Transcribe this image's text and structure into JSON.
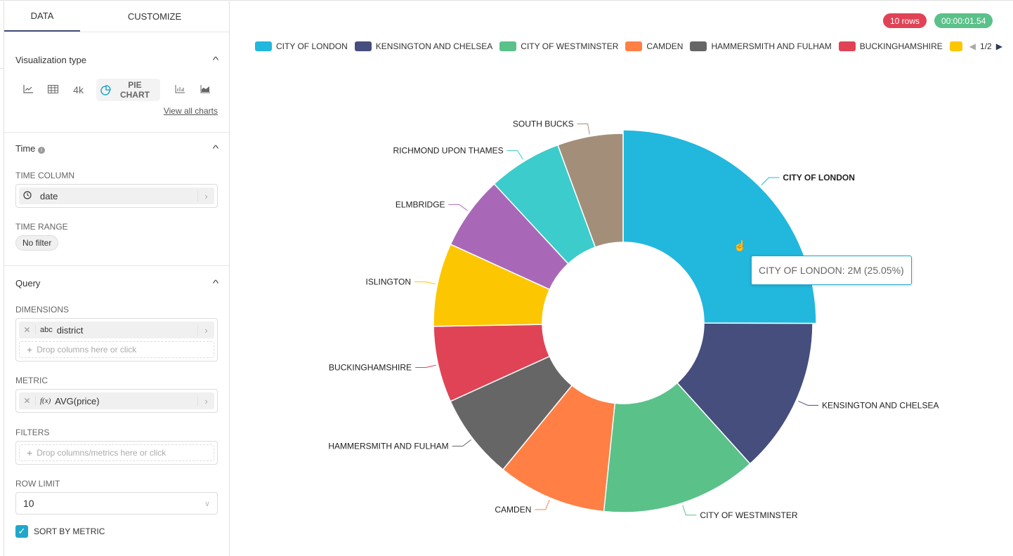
{
  "tabs": [
    {
      "label": "DATA",
      "active": true
    },
    {
      "label": "CUSTOMIZE",
      "active": false
    }
  ],
  "viz": {
    "title": "Visualization type",
    "big_number_label": "4k",
    "selected": "PIE CHART",
    "view_all": "View all charts"
  },
  "time": {
    "title": "Time",
    "time_column_label": "TIME COLUMN",
    "time_column": "date",
    "time_range_label": "TIME RANGE",
    "time_range": "No filter"
  },
  "query": {
    "title": "Query",
    "dimensions_label": "DIMENSIONS",
    "dimension_type": "abc",
    "dimension": "district",
    "dimensions_placeholder": "Drop columns here or click",
    "metric_label": "METRIC",
    "metric_type": "f(x)",
    "metric": "AVG(price)",
    "filters_label": "FILTERS",
    "filters_placeholder": "Drop columns/metrics here or click",
    "row_limit_label": "ROW LIMIT",
    "row_limit": "10",
    "sort_by_metric_label": "SORT BY METRIC",
    "sort_by_metric": true
  },
  "status": {
    "rows": "10 rows",
    "rows_color": "#e04355",
    "time": "00:00:01.54",
    "time_color": "#5ac189"
  },
  "legend_page": "1/2",
  "tooltip": "CITY OF LONDON: 2M (25.05%)",
  "chart_data": {
    "type": "pie",
    "donut": true,
    "legend_placement": "top",
    "unit": "percent",
    "categories": [
      "CITY OF LONDON",
      "KENSINGTON AND CHELSEA",
      "CITY OF WESTMINSTER",
      "CAMDEN",
      "HAMMERSMITH AND FULHAM",
      "BUCKINGHAMSHIRE",
      "ISLINGTON",
      "ELMBRIDGE",
      "RICHMOND UPON THAMES",
      "SOUTH BUCKS"
    ],
    "values": [
      25.05,
      13.3,
      13.3,
      9.3,
      7.3,
      6.5,
      7.1,
      6.3,
      6.3,
      5.6
    ],
    "colors": [
      "#22b7dd",
      "#454e7c",
      "#5ac189",
      "#ff7f44",
      "#666666",
      "#e04355",
      "#fcc700",
      "#a868b7",
      "#3ccccb",
      "#a38f79"
    ],
    "legend_visible": [
      "CITY OF LONDON",
      "KENSINGTON AND CHELSEA",
      "CITY OF WESTMINSTER",
      "CAMDEN",
      "HAMMERSMITH AND FULHAM",
      "BUCKINGHAMSHIRE"
    ],
    "highlighted": "CITY OF LONDON"
  }
}
